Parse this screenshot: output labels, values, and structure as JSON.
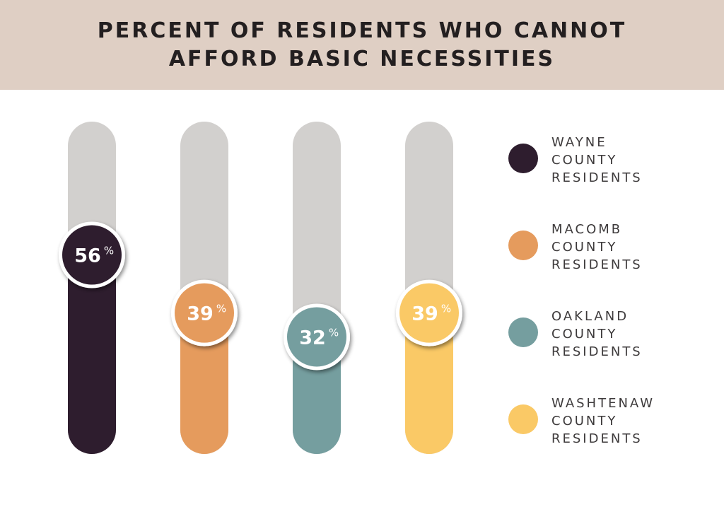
{
  "header": {
    "title_line1": "PERCENT OF RESIDENTS WHO CANNOT",
    "title_line2": "AFFORD BASIC NECESSITIES"
  },
  "legend": {
    "items": [
      {
        "line1": "WAYNE",
        "line2": "COUNTY",
        "line3": "RESIDENTS",
        "color": "#2e1d2e"
      },
      {
        "line1": "MACOMB",
        "line2": "COUNTY",
        "line3": "RESIDENTS",
        "color": "#e59b5d"
      },
      {
        "line1": "OAKLAND",
        "line2": "COUNTY",
        "line3": "RESIDENTS",
        "color": "#759e9f"
      },
      {
        "line1": "WASHTENAW",
        "line2": "COUNTY",
        "line3": "RESIDENTS",
        "color": "#fac966"
      }
    ]
  },
  "chart_data": {
    "type": "bar",
    "title": "PERCENT OF RESIDENTS WHO CANNOT AFFORD BASIC NECESSITIES",
    "categories": [
      "WAYNE COUNTY RESIDENTS",
      "MACOMB COUNTY RESIDENTS",
      "OAKLAND COUNTY RESIDENTS",
      "WASHTENAW COUNTY RESIDENTS"
    ],
    "values": [
      56,
      39,
      32,
      39
    ],
    "value_labels": [
      "56",
      "39",
      "32",
      "39"
    ],
    "unit": "%",
    "colors": [
      "#2e1d2e",
      "#e59b5d",
      "#759e9f",
      "#fac966"
    ],
    "track_color": "#d2d0ce",
    "ylim": [
      0,
      100
    ],
    "grid": false,
    "legend_position": "right"
  }
}
